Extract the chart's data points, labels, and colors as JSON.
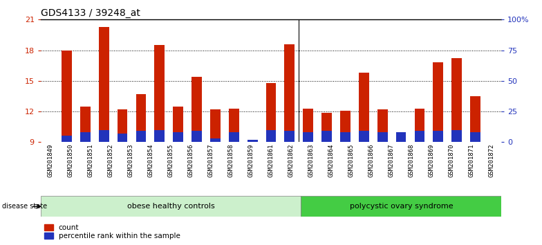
{
  "title": "GDS4133 / 39248_at",
  "samples": [
    "GSM201849",
    "GSM201850",
    "GSM201851",
    "GSM201852",
    "GSM201853",
    "GSM201854",
    "GSM201855",
    "GSM201856",
    "GSM201857",
    "GSM201858",
    "GSM201859",
    "GSM201861",
    "GSM201862",
    "GSM201863",
    "GSM201864",
    "GSM201865",
    "GSM201866",
    "GSM201867",
    "GSM201868",
    "GSM201869",
    "GSM201870",
    "GSM201871",
    "GSM201872"
  ],
  "counts": [
    18.0,
    12.5,
    20.3,
    12.2,
    13.7,
    18.5,
    12.5,
    15.4,
    12.2,
    12.3,
    9.2,
    14.8,
    18.6,
    12.3,
    11.9,
    12.1,
    15.8,
    12.2,
    9.5,
    12.3,
    16.8,
    17.2,
    13.5
  ],
  "percentile": [
    5,
    8,
    10,
    7,
    9,
    10,
    8,
    9,
    3,
    8,
    2,
    10,
    9,
    8,
    9,
    8,
    9,
    8,
    8,
    9,
    9,
    10,
    8
  ],
  "group1_label": "obese healthy controls",
  "group2_label": "polycystic ovary syndrome",
  "group1_count": 13,
  "group2_count": 10,
  "ylim_left": [
    9,
    21
  ],
  "yticks_left": [
    9,
    12,
    15,
    18,
    21
  ],
  "yticks_right": [
    0,
    25,
    50,
    75,
    100
  ],
  "bar_color": "#cc2200",
  "percentile_color": "#2233bb",
  "bar_width": 0.55,
  "group1_bg": "#ccf0cc",
  "group2_bg": "#44cc44",
  "background_color": "#ffffff",
  "plot_bg": "#ffffff",
  "title_color": "#000000",
  "left_axis_color": "#cc2200",
  "right_axis_color": "#2233bb"
}
